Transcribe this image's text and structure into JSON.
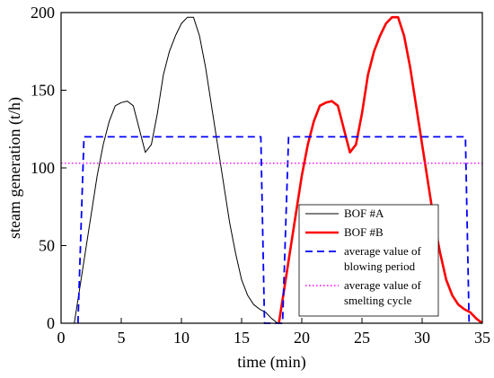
{
  "chart_data": {
    "type": "line",
    "xlabel": "time (min)",
    "ylabel": "steam generation (t/h)",
    "xlim": [
      0,
      35
    ],
    "ylim": [
      0,
      200
    ],
    "xticks": [
      0,
      5,
      10,
      15,
      20,
      25,
      30,
      35
    ],
    "yticks": [
      0,
      50,
      100,
      150,
      200
    ],
    "grid": false,
    "legend_position": "bottom-right",
    "series": [
      {
        "name": "BOF #A",
        "color": "#000000",
        "style": "solid",
        "x": [
          1.1,
          1.5,
          2.0,
          2.5,
          3.0,
          3.5,
          4.0,
          4.5,
          5.0,
          5.5,
          6.0,
          6.5,
          7.0,
          7.5,
          8.0,
          8.5,
          9.0,
          9.5,
          10.0,
          10.5,
          11.0,
          11.5,
          12.0,
          12.5,
          13.0,
          13.5,
          14.0,
          14.5,
          15.0,
          15.5,
          16.0,
          16.5,
          17.0,
          17.5,
          18.0
        ],
        "y": [
          0,
          20,
          45,
          70,
          95,
          115,
          130,
          140,
          142,
          143,
          140,
          125,
          110,
          115,
          135,
          160,
          175,
          185,
          193,
          197,
          197,
          185,
          165,
          140,
          115,
          90,
          65,
          45,
          28,
          18,
          12,
          9,
          7,
          3,
          0
        ]
      },
      {
        "name": "BOF #B",
        "color": "#ff0000",
        "style": "solid-thick",
        "x": [
          18.1,
          18.5,
          19.0,
          19.5,
          20.0,
          20.5,
          21.0,
          21.5,
          22.0,
          22.5,
          23.0,
          23.5,
          24.0,
          24.5,
          25.0,
          25.5,
          26.0,
          26.5,
          27.0,
          27.5,
          28.0,
          28.5,
          29.0,
          29.5,
          30.0,
          30.5,
          31.0,
          31.5,
          32.0,
          32.5,
          33.0,
          33.5,
          34.0,
          34.5,
          35.0
        ],
        "y": [
          0,
          20,
          45,
          70,
          95,
          115,
          130,
          140,
          142,
          143,
          140,
          125,
          110,
          115,
          135,
          160,
          175,
          185,
          193,
          197,
          197,
          185,
          165,
          140,
          115,
          90,
          65,
          45,
          28,
          18,
          12,
          9,
          7,
          3,
          0
        ]
      },
      {
        "name": "average value of blowing period",
        "color": "#0000ff",
        "style": "dashed",
        "x": [
          1.4,
          1.9,
          16.6,
          16.9,
          18.4,
          18.9,
          33.6,
          33.9
        ],
        "y": [
          0,
          120,
          120,
          0,
          0,
          120,
          120,
          0
        ]
      },
      {
        "name": "average value of smelting cycle",
        "color": "#ff00ff",
        "style": "dotted",
        "x": [
          0,
          35
        ],
        "y": [
          103,
          103
        ]
      }
    ],
    "legend": [
      {
        "lines": [
          "BOF #A"
        ],
        "series": 0
      },
      {
        "lines": [
          "BOF #B"
        ],
        "series": 1
      },
      {
        "lines": [
          "average value of",
          "blowing period"
        ],
        "series": 2
      },
      {
        "lines": [
          "average value of",
          "smelting cycle"
        ],
        "series": 3
      }
    ]
  }
}
